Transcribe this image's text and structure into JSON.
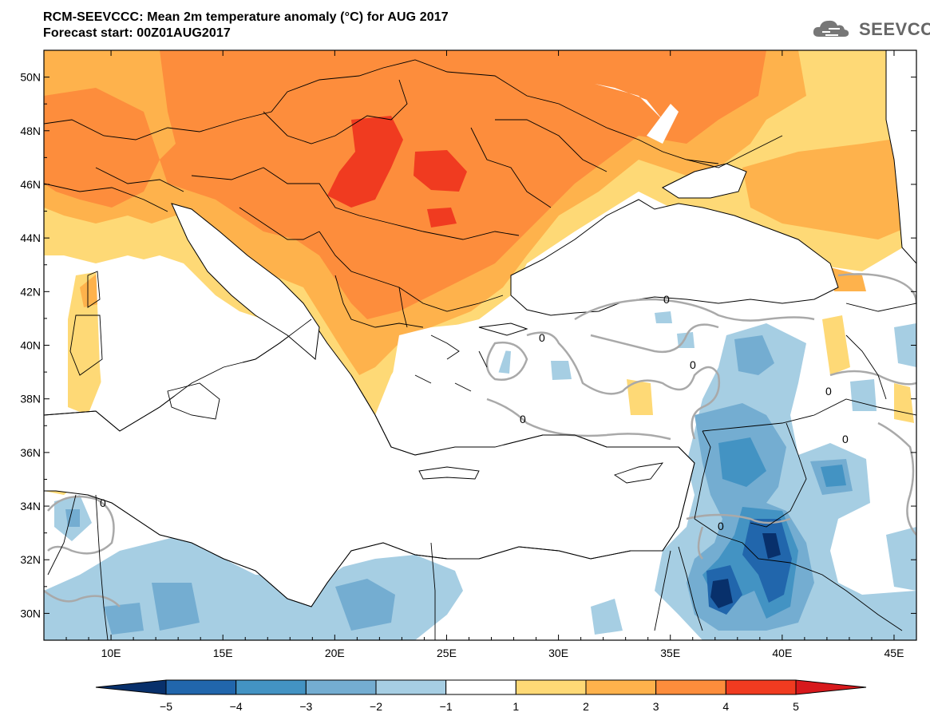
{
  "header": {
    "title": "RCM-SEEVCCC: Mean 2m temperature anomaly (°C) for AUG 2017",
    "subtitle": "Forecast start: 00Z01AUG2017"
  },
  "logo": {
    "text": "SEEVCCC",
    "icon": "cloud-logo-icon"
  },
  "map": {
    "lat_labels": [
      "50N",
      "48N",
      "46N",
      "44N",
      "42N",
      "40N",
      "38N",
      "36N",
      "34N",
      "32N",
      "30N"
    ],
    "lon_labels": [
      "10E",
      "15E",
      "20E",
      "25E",
      "30E",
      "35E",
      "40E",
      "45E"
    ],
    "lat_range": [
      29,
      51
    ],
    "lon_range": [
      7,
      46
    ],
    "contour_label": "0"
  },
  "colorbar": {
    "labels": [
      "−5",
      "−4",
      "−3",
      "−2",
      "−1",
      "1",
      "2",
      "3",
      "4",
      "5"
    ],
    "colors": [
      "#08306b",
      "#2166ac",
      "#4393c3",
      "#74add1",
      "#a6cee3",
      "#ffffff",
      "#fed976",
      "#feb24c",
      "#fd8d3c",
      "#f03b20",
      "#d7191c"
    ]
  },
  "colors": {
    "frame": "#000000",
    "contour": "#a9a9a9",
    "border": "#000000"
  }
}
